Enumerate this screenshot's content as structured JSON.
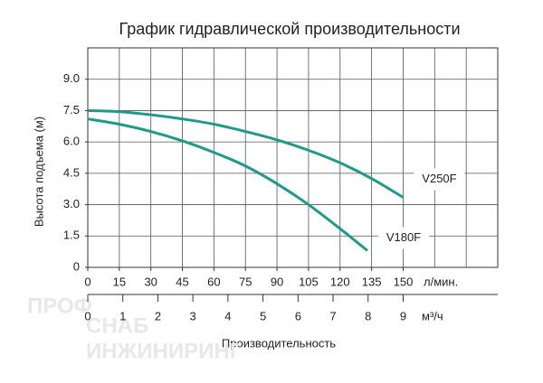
{
  "chart_data": {
    "type": "line",
    "title": "График гидравлической производительности",
    "y_label": "Высота подъема (м)",
    "x_label": "Производительность",
    "x_unit": "л/мин.",
    "x2_unit": "м³/ч",
    "xlim": [
      0,
      195
    ],
    "xticks": [
      0,
      15,
      30,
      45,
      60,
      75,
      90,
      105,
      120,
      135,
      150
    ],
    "x2lim": [
      0,
      11.7
    ],
    "x2ticks": [
      0,
      1,
      2,
      3,
      4,
      5,
      6,
      7,
      8,
      9
    ],
    "ylim": [
      0,
      10.5
    ],
    "yticks": [
      0,
      1.5,
      {
        "value": 3,
        "label": "3.0"
      },
      4.5,
      {
        "value": 6,
        "label": "6.0"
      },
      7.5,
      {
        "value": 9,
        "label": "9.0"
      }
    ],
    "grid": true,
    "series": [
      {
        "name": "V250F",
        "color": "#1e9a8c",
        "x": [
          0,
          15,
          30,
          45,
          60,
          75,
          90,
          105,
          120,
          135,
          150
        ],
        "values": [
          7.5,
          7.45,
          7.3,
          7.1,
          6.85,
          6.5,
          6.1,
          5.6,
          5.0,
          4.25,
          3.35
        ]
      },
      {
        "name": "V180F",
        "color": "#1e9a8c",
        "x": [
          0,
          15,
          30,
          45,
          60,
          75,
          90,
          105,
          120,
          133
        ],
        "values": [
          7.1,
          6.85,
          6.5,
          6.05,
          5.5,
          4.85,
          4.0,
          3.0,
          1.85,
          0.8
        ]
      }
    ],
    "watermark": [
      "ПРОФ",
      "СНАБ",
      "ИНЖИНИРИНГ"
    ]
  }
}
